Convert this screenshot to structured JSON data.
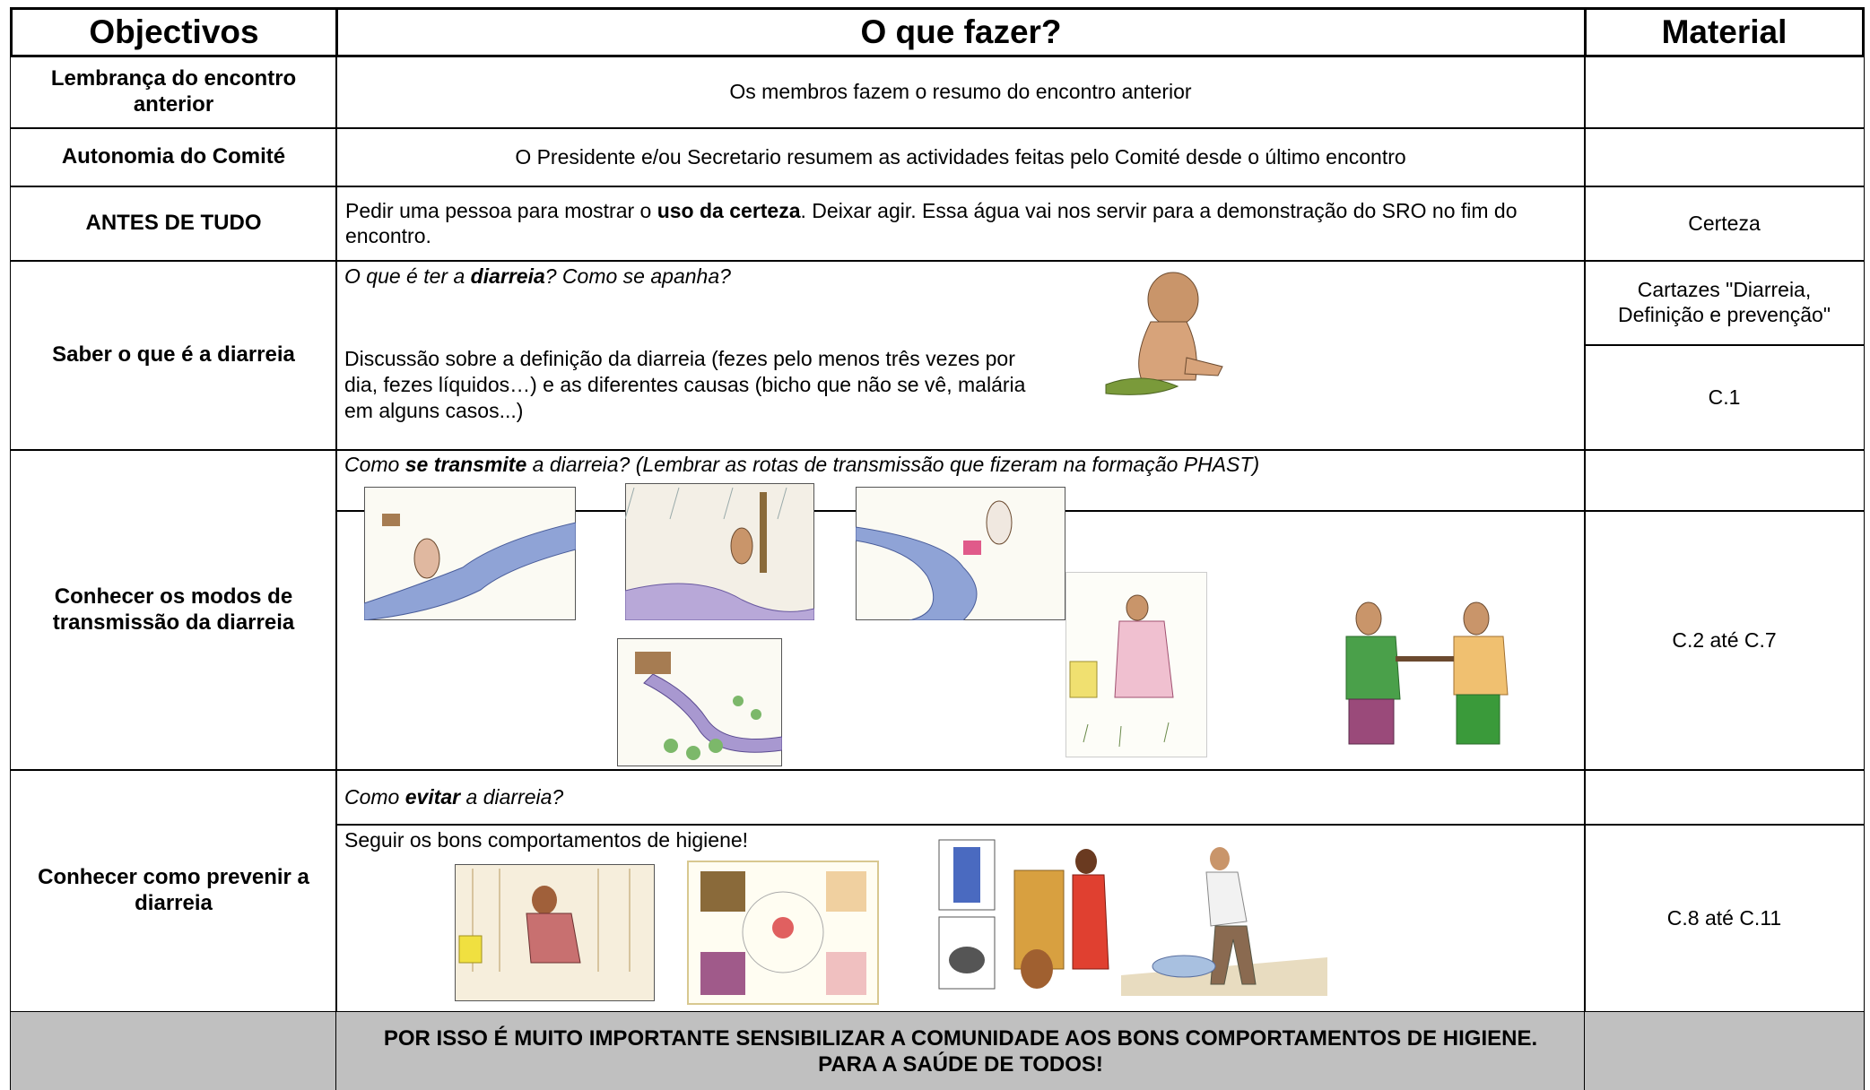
{
  "header": {
    "objective": "Objectivos",
    "what": "O que fazer?",
    "material": "Material"
  },
  "rows": [
    {
      "objective": "Lembrança do encontro anterior",
      "text": "Os membros fazem o resumo do encontro anterior"
    },
    {
      "objective": "Autonomia do Comité",
      "text": "O Presidente e/ou Secretario resumem as actividades feitas pelo Comité desde o último encontro"
    },
    {
      "objective": "ANTES DE TUDO",
      "text_parts": [
        "Pedir uma pessoa para mostrar o ",
        "uso da certeza",
        ". Deixar agir. Essa água vai nos servir para a demonstração do SRO no fim do encontro."
      ],
      "material": "Certeza"
    },
    {
      "objective": "Saber o que é a diarreia",
      "question_parts": [
        "O que é ter a ",
        "diarreia",
        "? Como se apanha?"
      ],
      "text": "Discussão sobre a definição da diarreia (fezes pelo menos três vezes por dia, fezes líquidos…) e as diferentes causas (bicho que não se vê, malária em alguns casos...)",
      "materials": [
        "Cartazes \"Diarreia, Definição e prevenção\"",
        "C.1"
      ]
    },
    {
      "objective": "Conhecer os modos de transmissão da diarreia",
      "question_parts": [
        "Como ",
        "se transmite",
        " a diarreia? (Lembrar as rotas de transmissão que fizeram na formação PHAST)"
      ],
      "material": "C.2 até C.7"
    },
    {
      "objective": "Conhecer como prevenir a diarreia",
      "question_parts": [
        "Como ",
        "evitar",
        " a diarreia?"
      ],
      "text": "Seguir os bons comportamentos de higiene!",
      "material": "C.8 até C.11"
    }
  ],
  "footer": {
    "text": "POR ISSO É MUITO IMPORTANTE SENSIBILIZAR A COMUNIDADE AOS BONS COMPORTAMENTOS DE HIGIENE. PARA A SAÚDE DE TODOS!"
  }
}
